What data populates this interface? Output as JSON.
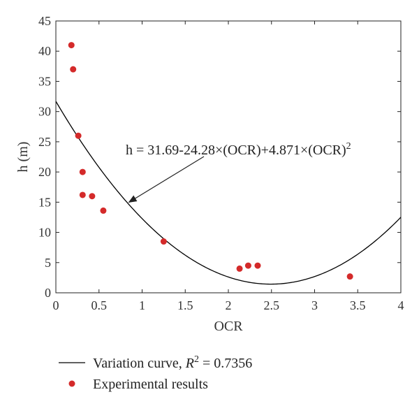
{
  "chart_data": {
    "type": "scatter",
    "xlabel": "OCR",
    "ylabel": "h (m)",
    "xlim": [
      0,
      4
    ],
    "ylim": [
      0,
      45
    ],
    "xticks": [
      "0",
      "0.5",
      "1",
      "1.5",
      "2",
      "2.5",
      "3",
      "3.5",
      "4"
    ],
    "yticks": [
      "0",
      "5",
      "10",
      "15",
      "20",
      "25",
      "30",
      "35",
      "40",
      "45"
    ],
    "grid": false,
    "legend_position": "bottom",
    "series": [
      {
        "name": "Experimental results",
        "kind": "scatter",
        "color": "#d42a2a",
        "points": [
          {
            "x": 0.18,
            "y": 41.0
          },
          {
            "x": 0.2,
            "y": 37.0
          },
          {
            "x": 0.26,
            "y": 26.0
          },
          {
            "x": 0.31,
            "y": 20.0
          },
          {
            "x": 0.31,
            "y": 16.2
          },
          {
            "x": 0.42,
            "y": 16.0
          },
          {
            "x": 0.55,
            "y": 13.6
          },
          {
            "x": 1.25,
            "y": 8.5
          },
          {
            "x": 2.13,
            "y": 4.0
          },
          {
            "x": 2.23,
            "y": 4.5
          },
          {
            "x": 2.34,
            "y": 4.5
          },
          {
            "x": 3.41,
            "y": 2.7
          }
        ]
      },
      {
        "name": "Variation curve, R² = 0.7356",
        "kind": "line",
        "color": "#000000",
        "equation": {
          "c0": 31.69,
          "c1": -24.28,
          "c2": 4.871
        }
      }
    ],
    "annotation": {
      "text_main": "h = 31.69-24.28×(OCR)+4.871×(OCR)",
      "text_sup": "2",
      "arrow_target": {
        "x": 0.83,
        "y": 15.1
      }
    },
    "legend": {
      "line_label_main": "Variation curve, ",
      "line_label_r": "R",
      "line_label_sup": "2",
      "line_label_tail": " = 0.7356",
      "marker_label": "Experimental results"
    }
  }
}
